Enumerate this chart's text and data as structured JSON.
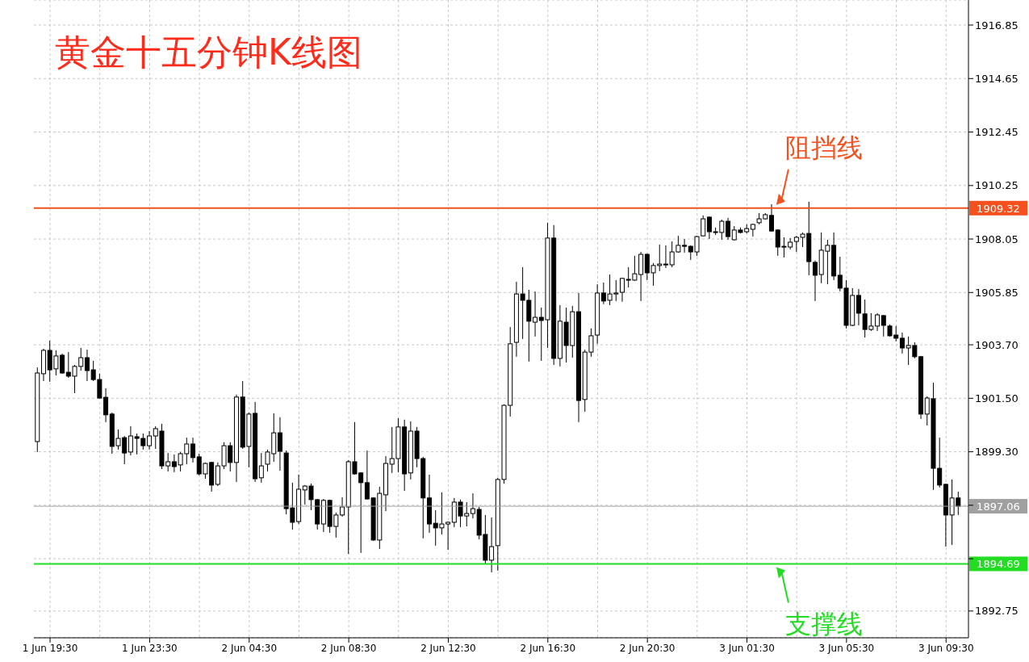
{
  "chart_data": {
    "type": "candlestick",
    "title": "黄金十五分钟K线图",
    "categories": [
      null,
      null,
      "1 Jun 19:30",
      null,
      null,
      null,
      null,
      null,
      null,
      null,
      null,
      null,
      null,
      null,
      null,
      null,
      null,
      null,
      "1 Jun 23:30",
      null,
      null,
      null,
      null,
      null,
      null,
      null,
      null,
      null,
      null,
      null,
      null,
      null,
      null,
      null,
      "2 Jun 04:30",
      null,
      null,
      null,
      null,
      null,
      null,
      null,
      null,
      null,
      null,
      null,
      null,
      null,
      null,
      null,
      "2 Jun 08:30",
      null,
      null,
      null,
      null,
      null,
      null,
      null,
      null,
      null,
      null,
      null,
      null,
      null,
      null,
      null,
      "2 Jun 12:30",
      null,
      null,
      null,
      null,
      null,
      null,
      null,
      null,
      null,
      null,
      null,
      null,
      null,
      null,
      null,
      "2 Jun 16:30",
      null,
      null,
      null,
      null,
      null,
      null,
      null,
      null,
      null,
      null,
      null,
      null,
      null,
      null,
      null,
      "2 Jun 20:30",
      null,
      null,
      null,
      null,
      null,
      null,
      null,
      null,
      null,
      null,
      null,
      null,
      null,
      null,
      null,
      "3 Jun 01:30",
      null,
      null,
      null,
      null,
      null,
      null,
      null,
      null,
      null,
      null,
      null,
      null,
      null,
      null,
      null,
      "3 Jun 05:30",
      null,
      null,
      null,
      null,
      null,
      null,
      null,
      null,
      null,
      null,
      null,
      null,
      null,
      null,
      null,
      "3 Jun 09:30",
      null,
      null
    ],
    "ohlc": [
      [
        1899.72,
        1902.77,
        1899.29,
        1902.54
      ],
      [
        1902.51,
        1903.54,
        1902.21,
        1903.47
      ],
      [
        1903.47,
        1903.87,
        1902.18,
        1902.67
      ],
      [
        1902.71,
        1903.47,
        1902.44,
        1903.24
      ],
      [
        1903.27,
        1903.34,
        1902.51,
        1902.54
      ],
      [
        1902.57,
        1903.4,
        1902.34,
        1902.41
      ],
      [
        1902.41,
        1902.87,
        1901.71,
        1902.81
      ],
      [
        1902.81,
        1903.57,
        1902.64,
        1903.17
      ],
      [
        1903.17,
        1903.5,
        1902.21,
        1902.64
      ],
      [
        1902.67,
        1903.04,
        1902.21,
        1902.27
      ],
      [
        1902.27,
        1902.51,
        1901.48,
        1901.51
      ],
      [
        1901.54,
        1901.91,
        1900.52,
        1900.82
      ],
      [
        1900.85,
        1900.91,
        1899.22,
        1899.52
      ],
      [
        1899.55,
        1900.22,
        1899.39,
        1899.85
      ],
      [
        1899.88,
        1899.95,
        1898.79,
        1899.25
      ],
      [
        1899.29,
        1900.35,
        1899.15,
        1899.95
      ],
      [
        1899.92,
        1900.05,
        1899.19,
        1899.85
      ],
      [
        1899.85,
        1900.05,
        1899.39,
        1899.55
      ],
      [
        1899.55,
        1900.15,
        1899.39,
        1899.95
      ],
      [
        1899.95,
        1900.35,
        1899.42,
        1900.25
      ],
      [
        1900.15,
        1900.45,
        1898.59,
        1898.72
      ],
      [
        1898.72,
        1899.25,
        1898.49,
        1898.89
      ],
      [
        1898.89,
        1899.19,
        1898.46,
        1898.69
      ],
      [
        1898.76,
        1899.29,
        1898.49,
        1899.22
      ],
      [
        1899.22,
        1899.88,
        1898.79,
        1899.62
      ],
      [
        1899.62,
        1899.88,
        1898.86,
        1899.06
      ],
      [
        1899.09,
        1899.22,
        1898.33,
        1898.39
      ],
      [
        1898.39,
        1898.86,
        1898.19,
        1898.82
      ],
      [
        1898.86,
        1898.89,
        1897.66,
        1897.93
      ],
      [
        1897.96,
        1898.86,
        1897.89,
        1898.72
      ],
      [
        1898.72,
        1899.69,
        1898.59,
        1899.55
      ],
      [
        1899.55,
        1899.69,
        1898.49,
        1898.86
      ],
      [
        1898.86,
        1901.65,
        1898.06,
        1901.55
      ],
      [
        1901.55,
        1902.21,
        1899.42,
        1899.49
      ],
      [
        1899.52,
        1900.91,
        1898.66,
        1900.85
      ],
      [
        1900.88,
        1901.35,
        1898.06,
        1898.19
      ],
      [
        1898.23,
        1899.25,
        1898.03,
        1898.72
      ],
      [
        1898.79,
        1899.39,
        1898.49,
        1899.29
      ],
      [
        1899.22,
        1900.88,
        1898.89,
        1900.08
      ],
      [
        1900.08,
        1900.72,
        1898.52,
        1899.32
      ],
      [
        1899.25,
        1899.35,
        1896.73,
        1896.96
      ],
      [
        1896.99,
        1898.03,
        1896.1,
        1896.4
      ],
      [
        1896.43,
        1898.36,
        1896.33,
        1897.76
      ],
      [
        1897.73,
        1897.93,
        1897.13,
        1897.89
      ],
      [
        1897.89,
        1897.99,
        1896.9,
        1897.33
      ],
      [
        1897.33,
        1897.36,
        1896.1,
        1896.33
      ],
      [
        1896.33,
        1897.36,
        1896.0,
        1897.3
      ],
      [
        1897.3,
        1897.33,
        1895.97,
        1896.23
      ],
      [
        1896.23,
        1896.8,
        1895.77,
        1896.7
      ],
      [
        1896.7,
        1897.43,
        1896.63,
        1897.03
      ],
      [
        1897.03,
        1898.96,
        1895.1,
        1898.89
      ],
      [
        1898.89,
        1900.52,
        1898.36,
        1898.39
      ],
      [
        1898.43,
        1898.46,
        1895.14,
        1898.03
      ],
      [
        1898.03,
        1899.35,
        1897.33,
        1897.36
      ],
      [
        1897.4,
        1897.43,
        1895.64,
        1895.67
      ],
      [
        1895.67,
        1897.86,
        1895.3,
        1897.59
      ],
      [
        1897.53,
        1899.12,
        1896.86,
        1898.82
      ],
      [
        1898.79,
        1900.32,
        1898.43,
        1899.02
      ],
      [
        1899.02,
        1900.68,
        1898.46,
        1900.32
      ],
      [
        1900.32,
        1900.62,
        1897.69,
        1898.39
      ],
      [
        1898.43,
        1900.55,
        1898.16,
        1900.15
      ],
      [
        1900.15,
        1900.32,
        1898.66,
        1899.02
      ],
      [
        1899.02,
        1899.09,
        1895.74,
        1897.4
      ],
      [
        1897.4,
        1898.36,
        1895.97,
        1896.33
      ],
      [
        1896.36,
        1896.9,
        1895.44,
        1896.17
      ],
      [
        1896.17,
        1897.63,
        1895.9,
        1896.33
      ],
      [
        1896.33,
        1896.43,
        1895.27,
        1896.4
      ],
      [
        1896.4,
        1897.4,
        1896.2,
        1897.23
      ],
      [
        1897.23,
        1897.33,
        1896.2,
        1896.66
      ],
      [
        1896.66,
        1897.23,
        1896.23,
        1896.76
      ],
      [
        1896.76,
        1897.59,
        1896.56,
        1896.96
      ],
      [
        1896.93,
        1897.03,
        1895.7,
        1895.87
      ],
      [
        1895.9,
        1896.7,
        1894.67,
        1894.84
      ],
      [
        1894.84,
        1896.6,
        1894.34,
        1895.4
      ],
      [
        1895.44,
        1898.23,
        1894.41,
        1898.16
      ],
      [
        1898.16,
        1901.25,
        1897.99,
        1901.21
      ],
      [
        1901.21,
        1904.43,
        1900.75,
        1903.74
      ],
      [
        1903.8,
        1906.29,
        1903.21,
        1905.79
      ],
      [
        1905.79,
        1906.89,
        1903.94,
        1905.53
      ],
      [
        1905.53,
        1905.96,
        1903.01,
        1904.67
      ],
      [
        1904.63,
        1905.89,
        1904.04,
        1904.83
      ],
      [
        1904.83,
        1905.23,
        1903.04,
        1904.7
      ],
      [
        1904.73,
        1908.72,
        1903.57,
        1908.09
      ],
      [
        1908.09,
        1908.62,
        1902.87,
        1903.14
      ],
      [
        1903.14,
        1905.33,
        1902.81,
        1904.67
      ],
      [
        1904.63,
        1905.23,
        1902.97,
        1903.67
      ],
      [
        1903.67,
        1905.3,
        1903.17,
        1905.06
      ],
      [
        1905.06,
        1905.83,
        1900.52,
        1901.41
      ],
      [
        1901.45,
        1903.5,
        1900.95,
        1903.4
      ],
      [
        1903.4,
        1904.37,
        1903.21,
        1904.07
      ],
      [
        1904.1,
        1906.19,
        1903.74,
        1905.83
      ],
      [
        1905.83,
        1906.26,
        1905.37,
        1905.5
      ],
      [
        1905.53,
        1906.59,
        1905.33,
        1905.79
      ],
      [
        1905.79,
        1906.36,
        1905.5,
        1905.83
      ],
      [
        1905.86,
        1906.46,
        1905.47,
        1906.43
      ],
      [
        1906.36,
        1906.89,
        1906.06,
        1906.39
      ],
      [
        1906.36,
        1907.36,
        1906.33,
        1906.62
      ],
      [
        1906.59,
        1907.52,
        1905.5,
        1907.42
      ],
      [
        1907.42,
        1907.45,
        1906.36,
        1906.66
      ],
      [
        1906.66,
        1907.06,
        1906.13,
        1906.96
      ],
      [
        1906.96,
        1907.82,
        1906.73,
        1907.02
      ],
      [
        1907.02,
        1907.79,
        1906.86,
        1906.99
      ],
      [
        1906.99,
        1907.95,
        1906.89,
        1907.52
      ],
      [
        1907.52,
        1908.18,
        1907.49,
        1907.79
      ],
      [
        1907.79,
        1908.05,
        1907.49,
        1907.75
      ],
      [
        1907.75,
        1907.79,
        1907.19,
        1907.52
      ],
      [
        1907.52,
        1908.18,
        1907.36,
        1908.15
      ],
      [
        1908.18,
        1909.02,
        1908.15,
        1908.88
      ],
      [
        1908.95,
        1908.98,
        1908.05,
        1908.35
      ],
      [
        1908.35,
        1908.52,
        1908.22,
        1908.32
      ],
      [
        1908.32,
        1908.85,
        1908.02,
        1908.78
      ],
      [
        1908.78,
        1908.92,
        1908.02,
        1908.15
      ],
      [
        1908.02,
        1908.58,
        1907.99,
        1908.42
      ],
      [
        1908.42,
        1908.52,
        1908.28,
        1908.32
      ],
      [
        1908.35,
        1908.65,
        1908.28,
        1908.48
      ],
      [
        1908.45,
        1908.68,
        1908.15,
        1908.65
      ],
      [
        1908.72,
        1909.12,
        1908.65,
        1908.88
      ],
      [
        1908.88,
        1909.12,
        1908.85,
        1909.05
      ],
      [
        1909.02,
        1909.48,
        1908.35,
        1908.38
      ],
      [
        1908.42,
        1908.45,
        1907.36,
        1907.72
      ],
      [
        1907.75,
        1908.12,
        1907.29,
        1907.72
      ],
      [
        1907.72,
        1908.09,
        1907.62,
        1907.92
      ],
      [
        1907.95,
        1908.18,
        1907.52,
        1908.12
      ],
      [
        1908.12,
        1908.32,
        1907.72,
        1908.25
      ],
      [
        1908.28,
        1909.58,
        1906.56,
        1907.12
      ],
      [
        1907.09,
        1907.16,
        1905.5,
        1906.56
      ],
      [
        1906.59,
        1908.32,
        1906.23,
        1907.59
      ],
      [
        1907.55,
        1908.02,
        1906.19,
        1907.79
      ],
      [
        1907.79,
        1908.32,
        1906.36,
        1906.53
      ],
      [
        1906.56,
        1907.32,
        1905.9,
        1906.03
      ],
      [
        1906.03,
        1906.36,
        1904.37,
        1904.5
      ],
      [
        1904.5,
        1906.03,
        1904.47,
        1905.73
      ],
      [
        1905.73,
        1905.99,
        1904.5,
        1905.0
      ],
      [
        1904.97,
        1905.56,
        1904.0,
        1904.33
      ],
      [
        1904.33,
        1905.0,
        1904.27,
        1904.47
      ],
      [
        1904.47,
        1905.0,
        1904.27,
        1904.93
      ],
      [
        1904.9,
        1904.93,
        1904.04,
        1904.5
      ],
      [
        1904.47,
        1904.53,
        1904.04,
        1904.07
      ],
      [
        1904.1,
        1904.47,
        1903.84,
        1903.97
      ],
      [
        1903.97,
        1904.2,
        1903.34,
        1903.57
      ],
      [
        1903.57,
        1904.04,
        1902.87,
        1903.67
      ],
      [
        1903.67,
        1903.8,
        1903.14,
        1903.21
      ],
      [
        1903.21,
        1903.24,
        1900.65,
        1900.85
      ],
      [
        1900.85,
        1901.58,
        1900.38,
        1901.51
      ],
      [
        1901.48,
        1902.14,
        1897.73,
        1898.62
      ],
      [
        1898.62,
        1899.88,
        1897.83,
        1897.93
      ],
      [
        1897.96,
        1897.99,
        1895.4,
        1896.7
      ],
      [
        1896.7,
        1898.16,
        1895.47,
        1897.4
      ],
      [
        1897.4,
        1897.66,
        1896.7,
        1897.06
      ]
    ],
    "color": "#000000",
    "ylim": [
      1891.65,
      1917.88
    ],
    "yticks": [
      1892.75,
      {
        "value": 1894.9,
        "label": null
      },
      {
        "value": 1897.1,
        "label": null
      },
      {
        "value": 1899.3,
        "label": "1899.30"
      },
      {
        "value": 1901.5,
        "label": "1901.50"
      },
      {
        "value": 1903.7,
        "label": "1903.70"
      },
      1905.85,
      1908.05,
      1910.25,
      1912.45,
      1914.65,
      1916.85
    ],
    "grid": true,
    "ref_lines": [
      {
        "axis": "y",
        "value": 1909.32,
        "label": "1909.32",
        "color": "#f4511e"
      },
      {
        "axis": "y",
        "value": 1894.69,
        "label": "1894.69",
        "color": "#22dd22"
      },
      {
        "axis": "y",
        "value": 1897.06,
        "label": "1897.06",
        "color": "#a0a0a0"
      }
    ],
    "annotations": [
      {
        "text": "阻挡线",
        "y": 1909.32
      },
      {
        "text": "支撑线",
        "y": 1894.69
      }
    ]
  }
}
